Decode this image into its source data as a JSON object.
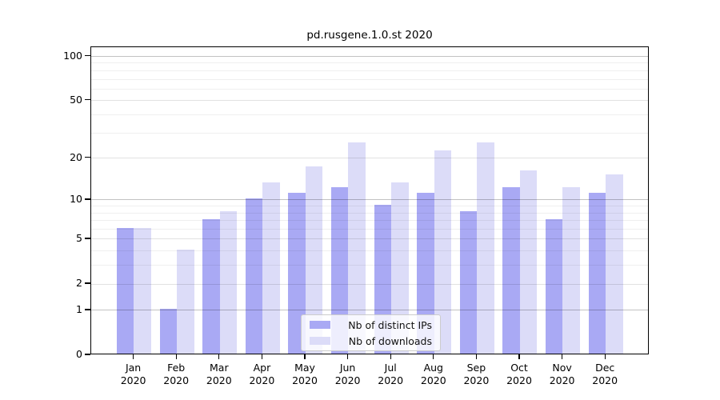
{
  "window": {
    "title": "pd.rusgene.1.0.st 2020"
  },
  "chart_data": {
    "type": "bar",
    "title": "pd.rusgene.1.0.st 2020",
    "categories": [
      "Jan 2020",
      "Feb 2020",
      "Mar 2020",
      "Apr 2020",
      "May 2020",
      "Jun 2020",
      "Jul 2020",
      "Aug 2020",
      "Sep 2020",
      "Oct 2020",
      "Nov 2020",
      "Dec 2020"
    ],
    "series": [
      {
        "name": "Nb of distinct IPs",
        "color": "#a9a9f4",
        "values": [
          6,
          1,
          7,
          10,
          11,
          12,
          9,
          11,
          8,
          12,
          7,
          11
        ]
      },
      {
        "name": "Nb of downloads",
        "color": "#dcdcf8",
        "values": [
          6,
          4,
          8,
          13,
          17,
          25,
          13,
          22,
          25,
          16,
          12,
          15
        ]
      }
    ],
    "xlabel": "",
    "ylabel": "",
    "yscale": "log1p",
    "ylim": [
      0,
      116
    ],
    "yticks": [
      0,
      1,
      2,
      5,
      10,
      20,
      50,
      100
    ],
    "yticks_minor": [
      3,
      4,
      6,
      7,
      8,
      9,
      30,
      40,
      60,
      70,
      80,
      90
    ],
    "grid": "horizontal, drawn over bars",
    "legend": {
      "position": "lower center",
      "entries": [
        "Nb of distinct IPs",
        "Nb of downloads"
      ]
    },
    "grid_colors": {
      "decade": "rgba(0,0,0,0.24)",
      "sub": "rgba(0,0,0,0.115)",
      "minor": "rgba(0,0,0,0.062)"
    }
  }
}
